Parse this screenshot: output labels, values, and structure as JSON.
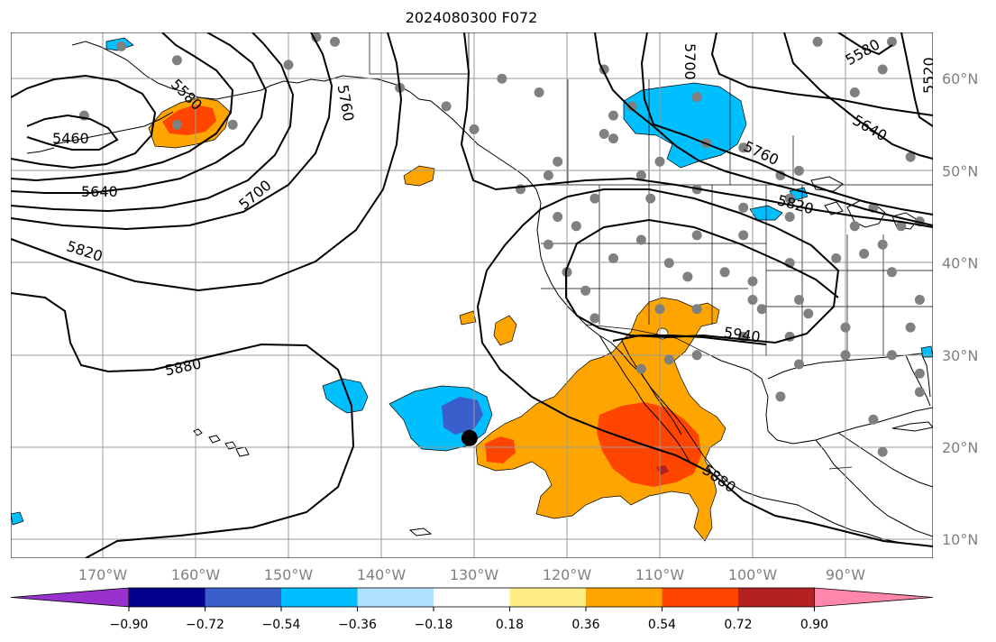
{
  "title": "2024080300 F072",
  "colors": {
    "grid": "#9a9a9a",
    "station": "#808080",
    "marker": "#000000",
    "contour": "#000000"
  },
  "chart_data": {
    "type": "heatmap",
    "title": "2024080300 F072",
    "projection": "plate carree",
    "lon_range": [
      -180,
      -80
    ],
    "lat_range": [
      8,
      65
    ],
    "grid": true,
    "lon_ticks": [
      "170°W",
      "160°W",
      "150°W",
      "140°W",
      "130°W",
      "120°W",
      "110°W",
      "100°W",
      "90°W"
    ],
    "lat_ticks": [
      "60°N",
      "50°N",
      "40°N",
      "30°N",
      "20°N",
      "10°N"
    ],
    "colorbar": {
      "extend": "both",
      "orientation": "horizontal",
      "levels": [
        "−0.90",
        "−0.72",
        "−0.54",
        "−0.36",
        "−0.18",
        "0.18",
        "0.36",
        "0.54",
        "0.72",
        "0.90"
      ],
      "colors": [
        "#9932cc",
        "#00008b",
        "#3a5fcd",
        "#00bfff",
        "#b0e2ff",
        "#ffffff",
        "#ffee88",
        "#ffa500",
        "#ff4500",
        "#b22222",
        "#ff88aa"
      ]
    },
    "contour_labels": [
      "5460",
      "5520",
      "5580",
      "5580",
      "5640",
      "5640",
      "5700",
      "5700",
      "5760",
      "5760",
      "5820",
      "5820",
      "5880",
      "5880",
      "5940"
    ],
    "shaded_regions": [
      {
        "sign": "positive",
        "peak": 0.72,
        "center": [
          -110,
          22
        ],
        "note": "Baja California / Eastern Pacific"
      },
      {
        "sign": "positive",
        "peak": 0.72,
        "center": [
          -160,
          55
        ],
        "note": "Alaska Peninsula"
      },
      {
        "sign": "positive",
        "peak": 0.54,
        "center": [
          -128,
          20
        ]
      },
      {
        "sign": "negative",
        "peak": -0.54,
        "center": [
          -131,
          24
        ]
      },
      {
        "sign": "negative",
        "peak": -0.36,
        "center": [
          -143,
          25
        ]
      },
      {
        "sign": "negative",
        "peak": -0.36,
        "center": [
          -109,
          54
        ],
        "note": "Canadian Prairies"
      }
    ],
    "marker": {
      "lon": -130.5,
      "lat": 21.0
    },
    "stations": [
      [
        -168,
        63.5
      ],
      [
        -162,
        62
      ],
      [
        -156,
        55
      ],
      [
        -162,
        55
      ],
      [
        -172,
        56
      ],
      [
        -150,
        61.5
      ],
      [
        -147,
        64.5
      ],
      [
        -145,
        64
      ],
      [
        -138,
        59
      ],
      [
        -133,
        57
      ],
      [
        -130,
        54.5
      ],
      [
        -127,
        60
      ],
      [
        -123,
        58.5
      ],
      [
        -116,
        61
      ],
      [
        -116,
        54
      ],
      [
        -112,
        49.5
      ],
      [
        -110,
        51
      ],
      [
        -106,
        58
      ],
      [
        -105,
        53
      ],
      [
        -101,
        52.5
      ],
      [
        -97,
        49.5
      ],
      [
        -95,
        50
      ],
      [
        -93,
        64
      ],
      [
        -89,
        58.5
      ],
      [
        -86,
        61
      ],
      [
        -85,
        64
      ],
      [
        -83,
        51.5
      ],
      [
        -115,
        56
      ],
      [
        -115,
        53.5
      ],
      [
        -113,
        57
      ],
      [
        -121,
        51
      ],
      [
        -122,
        49.5
      ],
      [
        -125,
        48
      ],
      [
        -121,
        45
      ],
      [
        -122,
        42
      ],
      [
        -117,
        47
      ],
      [
        -111,
        47
      ],
      [
        -106,
        48
      ],
      [
        -101,
        46
      ],
      [
        -96,
        47
      ],
      [
        -112,
        42.5
      ],
      [
        -106,
        43
      ],
      [
        -101,
        43
      ],
      [
        -96,
        45
      ],
      [
        -89,
        44
      ],
      [
        -115,
        40.5
      ],
      [
        -109,
        40
      ],
      [
        -103,
        39
      ],
      [
        -96,
        40
      ],
      [
        -91,
        40.5
      ],
      [
        -86,
        42
      ],
      [
        -84,
        44
      ],
      [
        -80,
        41
      ],
      [
        -117,
        34
      ],
      [
        -110,
        35
      ],
      [
        -106,
        35
      ],
      [
        -99,
        35
      ],
      [
        -94,
        34.5
      ],
      [
        -90,
        33
      ],
      [
        -106,
        30
      ],
      [
        -101,
        32
      ],
      [
        -96,
        32
      ],
      [
        -95,
        29
      ],
      [
        -90,
        30
      ],
      [
        -85,
        30
      ],
      [
        -82,
        28
      ],
      [
        -82,
        26
      ],
      [
        -87,
        23
      ],
      [
        -86,
        19.5
      ],
      [
        -97,
        25.5
      ],
      [
        -119,
        44
      ],
      [
        -118,
        37
      ],
      [
        -120,
        39
      ],
      [
        -107,
        38.5
      ],
      [
        -100,
        38
      ],
      [
        -100,
        36
      ],
      [
        -95,
        36
      ],
      [
        -83,
        33
      ],
      [
        -82,
        36
      ],
      [
        -80,
        37
      ],
      [
        -85,
        39
      ],
      [
        -82,
        44.5
      ],
      [
        -87,
        46
      ],
      [
        -88,
        41
      ],
      [
        -80,
        27
      ],
      [
        -112,
        28.5
      ],
      [
        -109,
        29.5
      ]
    ]
  }
}
